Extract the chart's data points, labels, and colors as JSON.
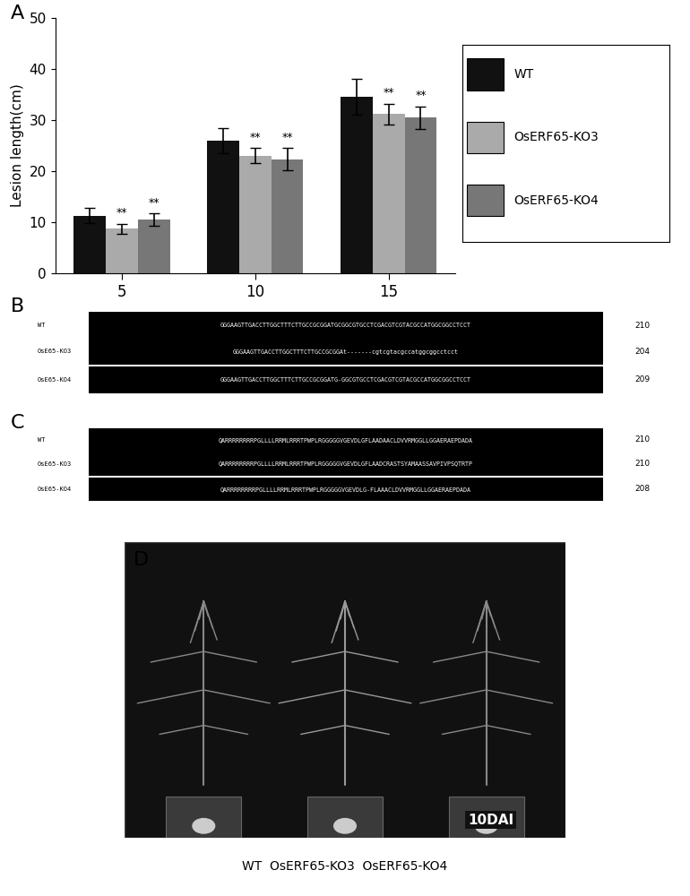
{
  "panel_A": {
    "label": "A",
    "groups": [
      5,
      10,
      15
    ],
    "wt_values": [
      11.3,
      26.0,
      34.5
    ],
    "ko3_values": [
      8.7,
      23.0,
      31.2
    ],
    "ko4_values": [
      10.5,
      22.3,
      30.5
    ],
    "wt_errors": [
      1.5,
      2.5,
      3.5
    ],
    "ko3_errors": [
      1.0,
      1.5,
      2.0
    ],
    "ko4_errors": [
      1.2,
      2.2,
      2.2
    ],
    "wt_color": "#111111",
    "ko3_color": "#aaaaaa",
    "ko4_color": "#777777",
    "ylabel": "Lesion length(cm)",
    "ylim": [
      0,
      50
    ],
    "yticks": [
      0,
      10,
      20,
      30,
      40,
      50
    ],
    "legend_labels": [
      "WT",
      "OsERF65-KO3",
      "OsERF65-KO4"
    ]
  },
  "panel_B": {
    "label": "B",
    "rows": [
      {
        "name": "WT",
        "seq": "GGGAAGTTGACCTTGGCTTTCTTGCCGCGGATGCGGCGTGCCTCGACGTCGTACGCCATGGCGGCCTCCT",
        "num": "210"
      },
      {
        "name": "OsERF65-KO3",
        "seq": "GGGAAGTTGACCTTGGCTTTCTTGCCGCGGAt-------cgtcgtacgccatggcggcctcct",
        "num": "204"
      },
      {
        "name": "OsERF65-KO4",
        "seq": "GGGAAGTTGACCTTGGCTTTCTTGCCGCGGATG-GGCGTGCCTCGACGTCGTACGCCATGGCGGCCTCCT",
        "num": "209"
      }
    ]
  },
  "panel_C": {
    "label": "C",
    "rows": [
      {
        "name": "WT",
        "seq": "QARRRRRRRRPGLLLLRRMLRRRTPWPLRGGGGGVGEVDLGFLAADAACLDVVRMGGLLGGAERAEPDADA",
        "num": "210"
      },
      {
        "name": "OsERF65-KO3",
        "seq": "QARRRRRRRRPGLLLLRRMLRRRTPWPLRGGGGGVGEVDLGFLAADCRASTSYAMAASSAVPIVPSQTRTP",
        "num": "210"
      },
      {
        "name": "OsERF65-KO4",
        "seq": "QARRRRRRRRPGLLLLRRMLRRRTPWPLRGGGGGVGEVDLG-FLAAACLDVVRMGGLLGGAERAEPDADA",
        "num": "208"
      }
    ]
  },
  "panel_D": {
    "label": "D",
    "caption": "WT  OsERF65-KO3  OsERF65-KO4",
    "overlay_text": "10DAI"
  },
  "figure_bg": "#ffffff"
}
